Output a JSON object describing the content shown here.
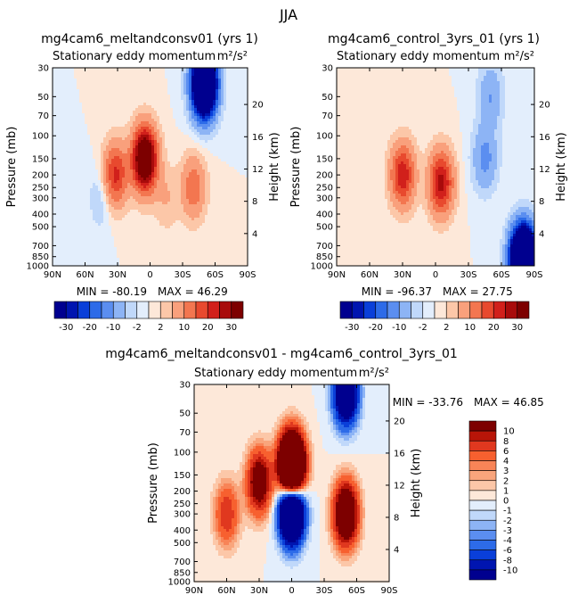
{
  "figure_title": "JJA",
  "chart_data": [
    {
      "type": "heatmap",
      "title": "mg4cam6_meltandconsv01 (yrs 1)",
      "subtitle_left": "Stationary eddy momentum",
      "units": "m²/s²",
      "ylabel": "Pressure (mb)",
      "ylabel_right": "Height (km)",
      "x_ticks": [
        "90N",
        "60N",
        "30N",
        "0",
        "30S",
        "60S",
        "90S"
      ],
      "y_ticks": [
        "30",
        "50",
        "70",
        "100",
        "150",
        "200",
        "250",
        "300",
        "400",
        "500",
        "700",
        "850",
        "1000"
      ],
      "height_ticks": [
        "20",
        "16",
        "12",
        "8",
        "4"
      ],
      "min_label": "MIN = -80.19",
      "max_label": "MAX =  46.29",
      "min": -80.19,
      "max": 46.29,
      "features": [
        {
          "lat": 5,
          "p": 150,
          "value": 46,
          "sign": "positive"
        },
        {
          "lat": 32,
          "p": 200,
          "value": 22,
          "sign": "positive"
        },
        {
          "lat": -40,
          "p": 250,
          "value": 14,
          "sign": "positive"
        },
        {
          "lat": -50,
          "p": 40,
          "value": -80,
          "sign": "negative"
        },
        {
          "lat": 45,
          "p": 300,
          "value": -5,
          "sign": "negative"
        },
        {
          "lat": -15,
          "p": 300,
          "value": 5,
          "sign": "positive"
        }
      ]
    },
    {
      "type": "heatmap",
      "title": "mg4cam6_control_3yrs_01 (yrs 1)",
      "subtitle_left": "Stationary eddy momentum",
      "units": "m²/s²",
      "ylabel": "Pressure (mb)",
      "ylabel_right": "Height (km)",
      "x_ticks": [
        "90N",
        "60N",
        "30N",
        "0",
        "30S",
        "60S",
        "90S"
      ],
      "y_ticks": [
        "30",
        "50",
        "70",
        "100",
        "150",
        "200",
        "250",
        "300",
        "400",
        "500",
        "700",
        "850",
        "1000"
      ],
      "height_ticks": [
        "20",
        "16",
        "12",
        "8",
        "4"
      ],
      "min_label": "MIN = -96.37",
      "max_label": "MAX =  27.75",
      "min": -96.37,
      "max": 27.75,
      "features": [
        {
          "lat": 30,
          "p": 200,
          "value": 24,
          "sign": "positive"
        },
        {
          "lat": -5,
          "p": 230,
          "value": 27,
          "sign": "positive"
        },
        {
          "lat": -45,
          "p": 150,
          "value": -12,
          "sign": "negative"
        },
        {
          "lat": -50,
          "p": 50,
          "value": -10,
          "sign": "negative"
        },
        {
          "lat": -80,
          "p": 900,
          "value": -96,
          "sign": "negative"
        }
      ]
    },
    {
      "type": "heatmap",
      "title": "mg4cam6_meltandconsv01 - mg4cam6_control_3yrs_01",
      "subtitle_left": "Stationary eddy momentum",
      "units": "m²/s²",
      "ylabel": "Pressure (mb)",
      "ylabel_right": "Height (km)",
      "x_ticks": [
        "90N",
        "60N",
        "30N",
        "0",
        "30S",
        "60S",
        "90S"
      ],
      "y_ticks": [
        "30",
        "50",
        "70",
        "100",
        "150",
        "200",
        "250",
        "300",
        "400",
        "500",
        "700",
        "850",
        "1000"
      ],
      "height_ticks": [
        "20",
        "16",
        "12",
        "8",
        "4"
      ],
      "min_label": "MIN = -33.76",
      "max_label": "MAX =  46.85",
      "min": -33.76,
      "max": 46.85,
      "features": [
        {
          "lat": 0,
          "p": 130,
          "value": 46,
          "sign": "positive"
        },
        {
          "lat": -50,
          "p": 300,
          "value": 20,
          "sign": "positive"
        },
        {
          "lat": 30,
          "p": 170,
          "value": 15,
          "sign": "positive"
        },
        {
          "lat": 0,
          "p": 280,
          "value": -33,
          "sign": "negative"
        },
        {
          "lat": -50,
          "p": 35,
          "value": -20,
          "sign": "negative"
        },
        {
          "lat": 60,
          "p": 300,
          "value": 8,
          "sign": "positive"
        }
      ]
    }
  ],
  "colorbar_top": {
    "tick_labels": [
      "-30",
      "-20",
      "-10",
      "-2",
      "2",
      "10",
      "20",
      "30"
    ],
    "colors": [
      "#00008f",
      "#0015b0",
      "#0a3fd9",
      "#2d6be8",
      "#5b8ef0",
      "#8db4f5",
      "#c0d8fa",
      "#e3eefc",
      "#fde8d9",
      "#fcc7a8",
      "#f9a07c",
      "#f37650",
      "#e8492e",
      "#d1201b",
      "#a80b0b",
      "#7d0000"
    ]
  },
  "colorbar_diff": {
    "tick_labels": [
      "10",
      "8",
      "6",
      "4",
      "3",
      "2",
      "1",
      "0",
      "-1",
      "-2",
      "-3",
      "-4",
      "-6",
      "-8",
      "-10"
    ],
    "colors": [
      "#7d0000",
      "#b81508",
      "#e0381f",
      "#f7602f",
      "#f88457",
      "#f9a57c",
      "#fcc7a8",
      "#fde8d9",
      "#e3eefc",
      "#c0d8fa",
      "#8db4f5",
      "#5b8ef0",
      "#2d6be8",
      "#0a3fd9",
      "#0015b0",
      "#00008f"
    ]
  }
}
